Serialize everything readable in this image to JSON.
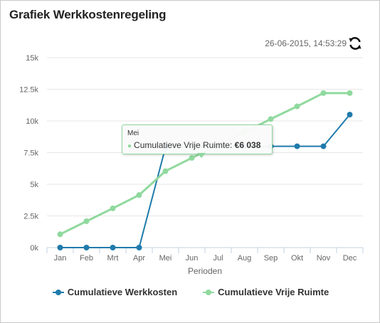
{
  "widget": {
    "title": "Grafiek Werkkostenregeling",
    "timestamp": "26-06-2015, 14:53:29",
    "refresh_icon": "refresh-icon"
  },
  "colors": {
    "werkkosten": "#1f7bac",
    "vrije_ruimte": "#90d99e",
    "grid": "#e6e6e6",
    "axis": "#c0d0e0"
  },
  "tooltip": {
    "month": "Mei",
    "series_label": "Cumulatieve Vrije Ruimte:",
    "value": "€6 038"
  },
  "chart_data": {
    "type": "line",
    "categories": [
      "Jan",
      "Feb",
      "Mrt",
      "Apr",
      "Mei",
      "Jun",
      "Jul",
      "Aug",
      "Sep",
      "Okt",
      "Nov",
      "Dec"
    ],
    "xlabel": "Perioden",
    "ylabel": "",
    "ylim": [
      0,
      15000
    ],
    "yticks": [
      0,
      2500,
      5000,
      7500,
      10000,
      12500,
      15000
    ],
    "ytick_labels": [
      "0k",
      "2.5k",
      "5k",
      "7.5k",
      "10k",
      "12.5k",
      "15k"
    ],
    "grid": true,
    "legend": "bottom",
    "series": [
      {
        "name": "Cumulatieve Werkkosten",
        "color": "#1f7bac",
        "values": [
          0,
          0,
          0,
          0,
          7900,
          7950,
          8000,
          8000,
          8000,
          8000,
          8000,
          10500
        ]
      },
      {
        "name": "Cumulatieve Vrije Ruimte",
        "color": "#90d99e",
        "values": [
          1050,
          2080,
          3100,
          4150,
          6038,
          7080,
          8100,
          9100,
          10150,
          11150,
          12200,
          12200
        ]
      }
    ]
  }
}
